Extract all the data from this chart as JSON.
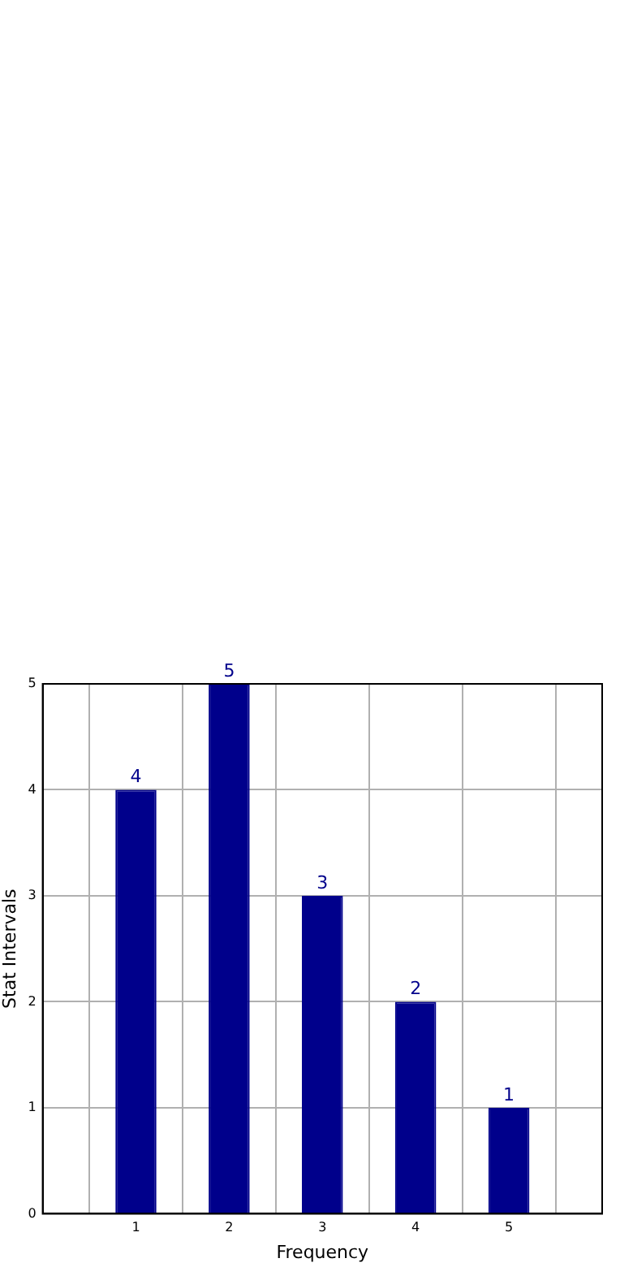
{
  "chart_data": {
    "type": "bar",
    "xlabel": "Frequency",
    "ylabel": "Stat Intervals",
    "x": [
      1,
      2,
      3,
      4,
      5
    ],
    "values": [
      4,
      5,
      3,
      2,
      1
    ],
    "color": "#ccccе0",
    "xlim": [
      0,
      6
    ],
    "xticks": [
      1,
      2,
      3,
      4,
      5
    ],
    "ylim": [
      0,
      5
    ],
    "yticks": [
      0,
      1,
      2,
      3,
      4,
      5
    ],
    "grid": true,
    "data_labels": true
  }
}
